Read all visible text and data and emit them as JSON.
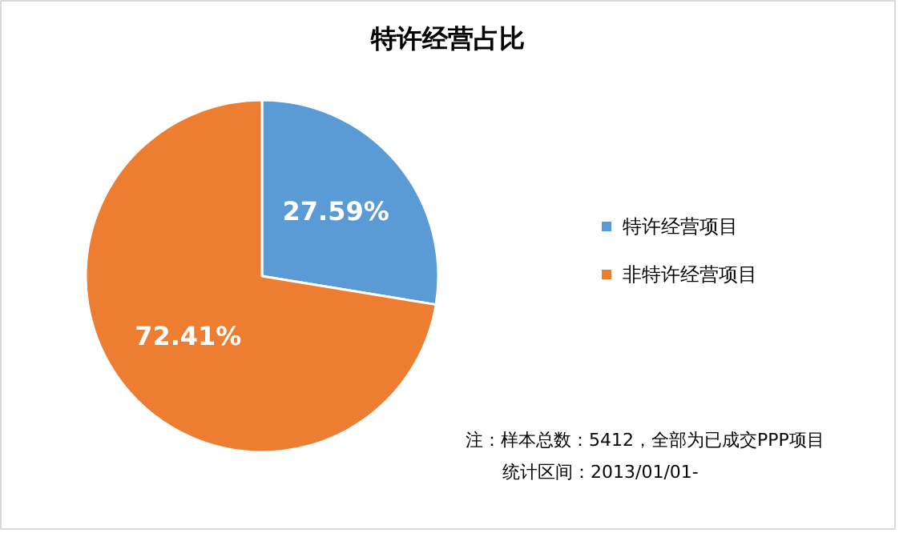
{
  "chart_data": {
    "type": "pie",
    "title": "特许经营占比",
    "categories": [
      "特许经营项目",
      "非特许经营项目"
    ],
    "values": [
      27.59,
      72.41
    ],
    "colors": [
      "#5b9bd5",
      "#ed7d31"
    ],
    "value_labels": [
      "27.59%",
      "72.41%"
    ],
    "legend": "right",
    "annotations": [
      "注：样本总数：5412，全部为已成交PPP项目",
      "统计区间：2013/01/01-"
    ]
  }
}
